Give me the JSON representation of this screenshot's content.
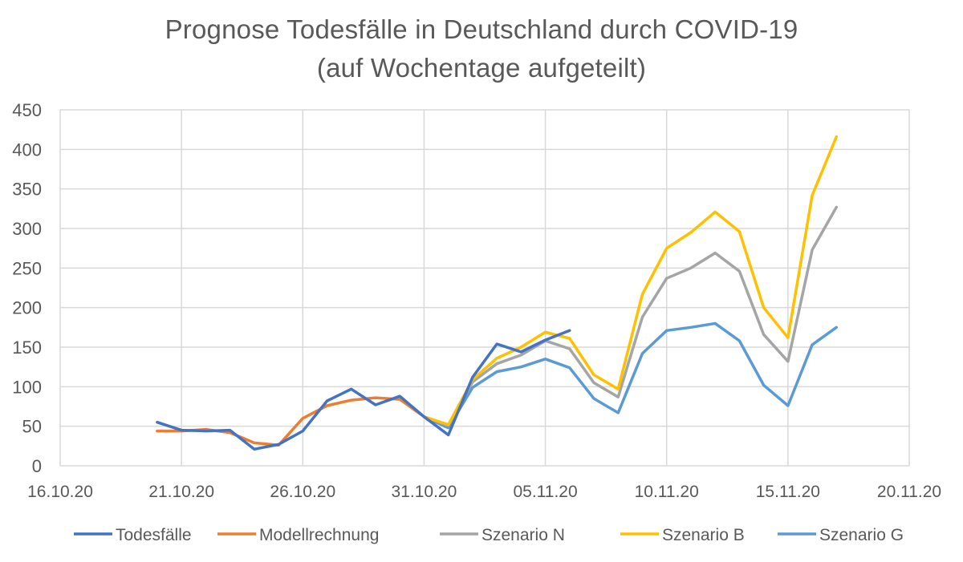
{
  "chart_data": {
    "type": "line",
    "title": "Prognose Todesfälle in Deutschland durch COVID-19",
    "subtitle": "(auf Wochentage aufgeteilt)",
    "xlabel": "",
    "ylabel": "",
    "ylim": [
      0,
      450
    ],
    "y_ticks": [
      "0",
      "50",
      "100",
      "150",
      "200",
      "250",
      "300",
      "350",
      "400",
      "450"
    ],
    "y_tick_values": [
      0,
      50,
      100,
      150,
      200,
      250,
      300,
      350,
      400,
      450
    ],
    "x_range": [
      "16.10.20",
      "20.11.20"
    ],
    "x_ticks": [
      "16.10.20",
      "21.10.20",
      "26.10.20",
      "31.10.20",
      "05.11.20",
      "10.11.20",
      "15.11.20",
      "20.11.20"
    ],
    "x_tick_day_offsets": [
      0,
      5,
      10,
      15,
      20,
      25,
      30,
      35
    ],
    "x_unit": "days since 16.10.20",
    "grid": true,
    "legend_position": "bottom",
    "series": [
      {
        "name": "Todesfälle",
        "color": "#4472C4",
        "start_date": "20.10.20",
        "start_day_offset": 4,
        "values": [
          55,
          45,
          44,
          45,
          21,
          27,
          44,
          82,
          97,
          77,
          88,
          62,
          39,
          112,
          154,
          144,
          159,
          171
        ]
      },
      {
        "name": "Modellrechnung",
        "color": "#ED7D31",
        "start_date": "20.10.20",
        "start_day_offset": 4,
        "values": [
          44,
          44,
          46,
          42,
          29,
          26,
          60,
          76,
          83,
          86,
          84,
          62
        ]
      },
      {
        "name": "Szenario N",
        "color": "#A5A5A5",
        "start_date": "31.10.20",
        "start_day_offset": 15,
        "values": [
          62,
          51,
          106,
          129,
          140,
          158,
          148,
          105,
          87,
          188,
          237,
          250,
          269,
          246,
          166,
          132,
          273,
          327
        ]
      },
      {
        "name": "Szenario B",
        "color": "#FFC000",
        "start_date": "31.10.20",
        "start_day_offset": 15,
        "values": [
          62,
          52,
          109,
          136,
          150,
          169,
          161,
          115,
          97,
          217,
          275,
          295,
          321,
          296,
          200,
          162,
          342,
          416
        ]
      },
      {
        "name": "Szenario G",
        "color": "#5B9BD5",
        "start_date": "31.10.20",
        "start_day_offset": 15,
        "values": [
          62,
          48,
          99,
          119,
          125,
          135,
          124,
          85,
          67,
          142,
          171,
          175,
          180,
          158,
          102,
          76,
          153,
          175
        ]
      }
    ]
  },
  "colors": {
    "gridline": "#D9D9D9",
    "text": "#595959",
    "background": "#FFFFFF"
  }
}
